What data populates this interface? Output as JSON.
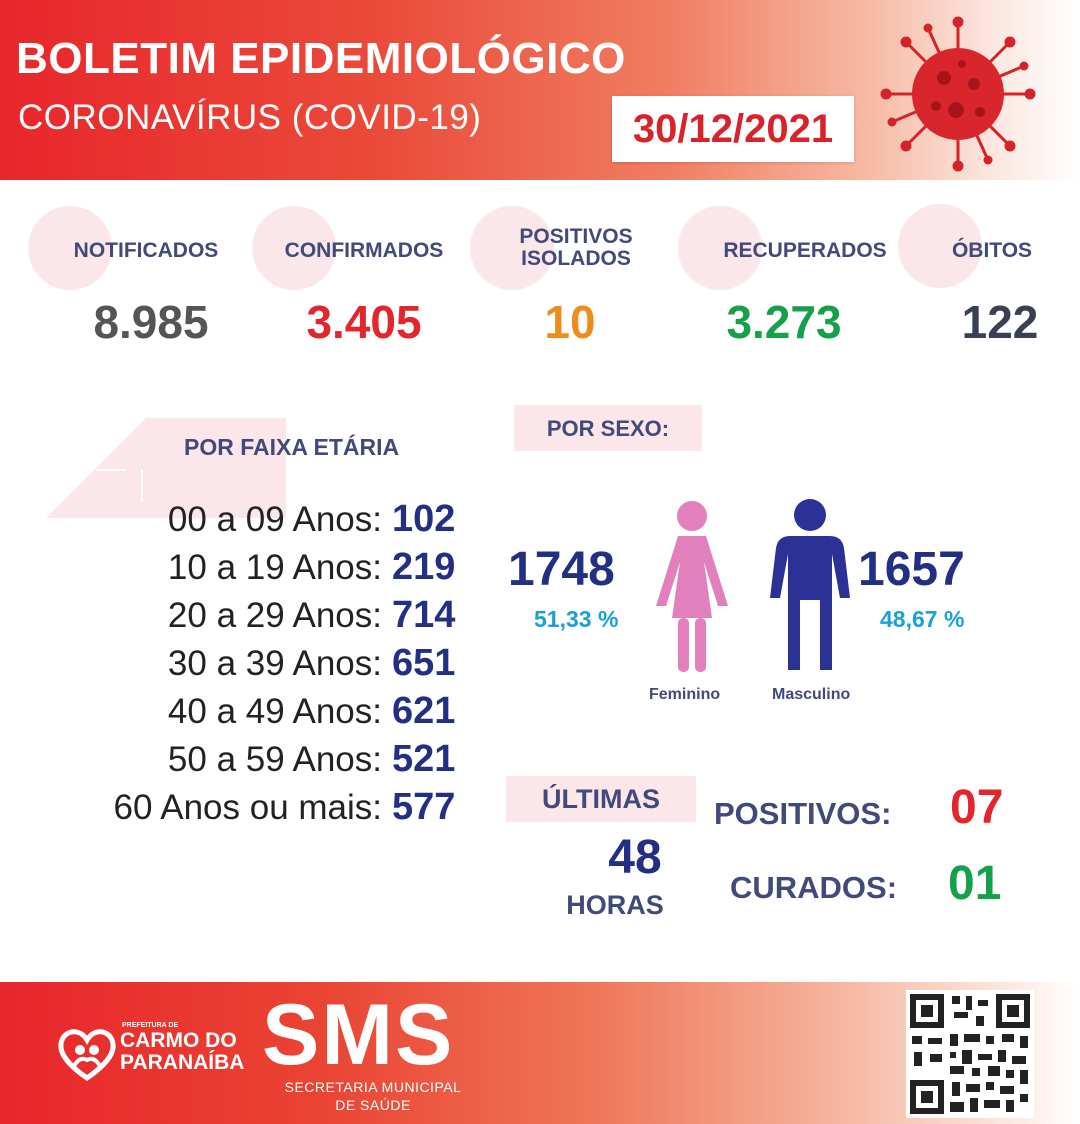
{
  "header": {
    "title": "BOLETIM EPIDEMIOLÓGICO",
    "subtitle": "CORONAVÍRUS (COVID-19)",
    "date": "30/12/2021"
  },
  "stats": [
    {
      "label": "NOTIFICADOS",
      "value": "8.985",
      "color": "#555555"
    },
    {
      "label": "CONFIRMADOS",
      "value": "3.405",
      "color": "#e3262c"
    },
    {
      "label": "POSITIVOS ISOLADOS",
      "value": "10",
      "color": "#f08c1e"
    },
    {
      "label": "RECUPERADOS",
      "value": "3.273",
      "color": "#16a04a"
    },
    {
      "label": "ÓBITOS",
      "value": "122",
      "color": "#3a3f52"
    }
  ],
  "age": {
    "title": "POR FAIXA ETÁRIA",
    "rows": [
      {
        "label": "00 a 09 Anos:",
        "value": "102"
      },
      {
        "label": "10 a 19 Anos:",
        "value": "219"
      },
      {
        "label": "20 a 29 Anos:",
        "value": "714"
      },
      {
        "label": "30 a 39 Anos:",
        "value": "651"
      },
      {
        "label": "40 a 49 Anos:",
        "value": "621"
      },
      {
        "label": "50 a 59 Anos:",
        "value": "521"
      },
      {
        "label": "60 Anos ou mais:",
        "value": "577"
      }
    ]
  },
  "sex": {
    "title": "POR SEXO:",
    "female": {
      "value": "1748",
      "percent": "51,33 %",
      "label": "Feminino",
      "color": "#e27fbd"
    },
    "male": {
      "value": "1657",
      "percent": "48,67 %",
      "label": "Masculino",
      "color": "#2b3195"
    }
  },
  "last48": {
    "title": "ÚLTIMAS",
    "hours": "48",
    "hours_label": "HORAS",
    "positivos_label": "POSITIVOS:",
    "positivos_value": "07",
    "curados_label": "CURADOS:",
    "curados_value": "01"
  },
  "footer": {
    "pref_label": "PREFEITURA DE",
    "city_line1": "CARMO DO",
    "city_line2": "PARANAÍBA",
    "sms": "SMS",
    "sms_line1": "SECRETARIA MUNICIPAL",
    "sms_line2": "DE SAÚDE"
  }
}
